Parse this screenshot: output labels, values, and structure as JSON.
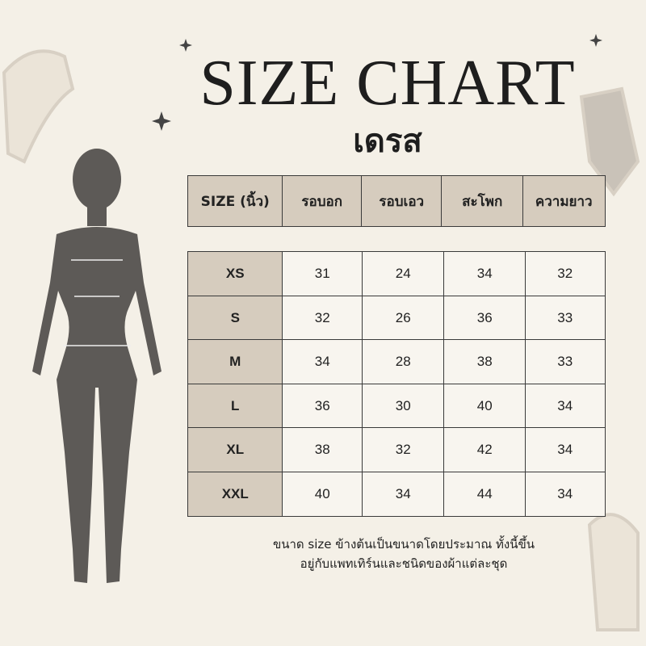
{
  "header": {
    "title": "SIZE CHART",
    "subtitle": "เดรส"
  },
  "table": {
    "columns": [
      "SIZE (นิ้ว)",
      "รอบอก",
      "รอบเอว",
      "สะโพก",
      "ความยาว"
    ],
    "rows": [
      [
        "XS",
        "31",
        "24",
        "34",
        "32"
      ],
      [
        "S",
        "32",
        "26",
        "36",
        "33"
      ],
      [
        "M",
        "34",
        "28",
        "38",
        "33"
      ],
      [
        "L",
        "36",
        "30",
        "40",
        "34"
      ],
      [
        "XL",
        "38",
        "32",
        "42",
        "34"
      ],
      [
        "XXL",
        "40",
        "34",
        "44",
        "34"
      ]
    ]
  },
  "note": [
    "ขนาด size  ข้างต้นเป็นขนาดโดยประมาณ ทั้งนี้ขึ้น",
    "อยู่กับแพทเทิร์นและชนิดของผ้าแต่ละชุด"
  ]
}
